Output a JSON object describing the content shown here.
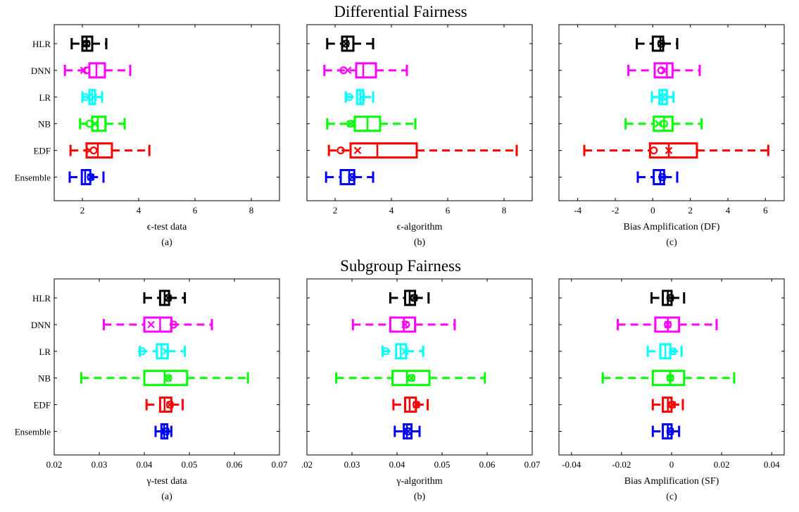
{
  "figure": {
    "section_titles": [
      "Differential Fairness",
      "Subgroup Fairness"
    ]
  },
  "chart_data": [
    {
      "type": "box",
      "section": 0,
      "xlabel": "ϵ-test data",
      "caption": "(a)",
      "xlim": [
        1,
        9
      ],
      "xticks": [
        2,
        4,
        6,
        8
      ],
      "xtick_labels": [
        "2",
        "4",
        "6",
        "8"
      ],
      "categories": [
        "HLR",
        "DNN",
        "LR",
        "NB",
        "EDF",
        "Ensemble"
      ],
      "boxes": [
        {
          "name": "HLR",
          "color": "#000000",
          "min": 1.62,
          "q1": 2.0,
          "median": 2.15,
          "q3": 2.35,
          "max": 2.85,
          "mean": 2.15,
          "mean_marker": "x",
          "extra": 2.15,
          "extra_marker": "o"
        },
        {
          "name": "DNN",
          "color": "#ff00ff",
          "min": 1.38,
          "q1": 2.25,
          "median": 2.5,
          "q3": 2.8,
          "max": 3.7,
          "mean": 2.05,
          "mean_marker": "x",
          "extra": 2.15,
          "extra_marker": "o"
        },
        {
          "name": "LR",
          "color": "#00ffff",
          "min": 2.0,
          "q1": 2.25,
          "median": 2.35,
          "q3": 2.45,
          "max": 2.7,
          "mean": 2.4,
          "mean_marker": "x",
          "extra": 2.1,
          "extra_marker": "o"
        },
        {
          "name": "NB",
          "color": "#00ff00",
          "min": 1.92,
          "q1": 2.35,
          "median": 2.55,
          "q3": 2.82,
          "max": 3.5,
          "mean": 2.45,
          "mean_marker": "x",
          "extra": 2.25,
          "extra_marker": "o"
        },
        {
          "name": "EDF",
          "color": "#ff0000",
          "min": 1.58,
          "q1": 2.15,
          "median": 2.55,
          "q3": 3.05,
          "max": 4.38,
          "mean": 2.25,
          "mean_marker": "x",
          "extra": 2.4,
          "extra_marker": "o"
        },
        {
          "name": "Ensemble",
          "color": "#0000ff",
          "min": 1.55,
          "q1": 1.98,
          "median": 2.1,
          "q3": 2.28,
          "max": 2.75,
          "mean": 2.3,
          "mean_marker": "x",
          "extra": 2.3,
          "extra_marker": "o"
        }
      ]
    },
    {
      "type": "box",
      "section": 0,
      "xlabel": "ϵ-algorithm",
      "caption": "(b)",
      "xlim": [
        1,
        9
      ],
      "xticks": [
        2,
        4,
        6,
        8
      ],
      "xtick_labels": [
        "2",
        "4",
        "6",
        "8"
      ],
      "categories": [
        "HLR",
        "DNN",
        "LR",
        "NB",
        "EDF",
        "Ensemble"
      ],
      "boxes": [
        {
          "name": "HLR",
          "color": "#000000",
          "min": 1.72,
          "q1": 2.25,
          "median": 2.42,
          "q3": 2.65,
          "max": 3.35,
          "mean": 2.38,
          "mean_marker": "x",
          "extra": 2.38,
          "extra_marker": "o"
        },
        {
          "name": "DNN",
          "color": "#ff00ff",
          "min": 1.62,
          "q1": 2.75,
          "median": 3.0,
          "q3": 3.45,
          "max": 4.55,
          "mean": 2.45,
          "mean_marker": "x",
          "extra": 2.3,
          "extra_marker": "o"
        },
        {
          "name": "LR",
          "color": "#00ffff",
          "min": 2.38,
          "q1": 2.78,
          "median": 2.9,
          "q3": 3.0,
          "max": 3.35,
          "mean": 2.95,
          "mean_marker": "x",
          "extra": 2.5,
          "extra_marker": "o"
        },
        {
          "name": "NB",
          "color": "#00ff00",
          "min": 1.72,
          "q1": 2.7,
          "median": 3.15,
          "q3": 3.6,
          "max": 4.85,
          "mean": 2.55,
          "mean_marker": "x",
          "extra": 2.55,
          "extra_marker": "o"
        },
        {
          "name": "EDF",
          "color": "#ff0000",
          "min": 1.78,
          "q1": 2.55,
          "median": 3.5,
          "q3": 4.9,
          "max": 8.45,
          "mean": 2.8,
          "mean_marker": "x",
          "extra": 2.2,
          "extra_marker": "o"
        },
        {
          "name": "Ensemble",
          "color": "#0000ff",
          "min": 1.68,
          "q1": 2.2,
          "median": 2.5,
          "q3": 2.68,
          "max": 3.35,
          "mean": 2.6,
          "mean_marker": "x",
          "extra": 2.6,
          "extra_marker": "o"
        }
      ]
    },
    {
      "type": "box",
      "section": 0,
      "xlabel": "Bias Amplification (DF)",
      "caption": "(c)",
      "xlim": [
        -5,
        7
      ],
      "xticks": [
        -4,
        -2,
        0,
        2,
        4,
        6
      ],
      "xtick_labels": [
        "-4",
        "-2",
        "0",
        "2",
        "4",
        "6"
      ],
      "categories": [
        "HLR",
        "DNN",
        "LR",
        "NB",
        "EDF",
        "Ensemble"
      ],
      "boxes": [
        {
          "name": "HLR",
          "color": "#000000",
          "min": -0.85,
          "q1": 0.0,
          "median": 0.4,
          "q3": 0.55,
          "max": 1.3,
          "mean": 0.45,
          "mean_marker": "x",
          "extra": 0.45,
          "extra_marker": "o"
        },
        {
          "name": "DNN",
          "color": "#ff00ff",
          "min": -1.3,
          "q1": 0.1,
          "median": 0.75,
          "q3": 1.05,
          "max": 2.5,
          "mean": 0.6,
          "mean_marker": "x",
          "extra": 0.45,
          "extra_marker": "o"
        },
        {
          "name": "LR",
          "color": "#00ffff",
          "min": -0.05,
          "q1": 0.35,
          "median": 0.5,
          "q3": 0.75,
          "max": 1.1,
          "mean": 0.55,
          "mean_marker": "x",
          "extra": 0.55,
          "extra_marker": "o"
        },
        {
          "name": "NB",
          "color": "#00ff00",
          "min": -1.45,
          "q1": 0.05,
          "median": 0.6,
          "q3": 1.05,
          "max": 2.6,
          "mean": 0.3,
          "mean_marker": "x",
          "extra": 0.6,
          "extra_marker": "o"
        },
        {
          "name": "EDF",
          "color": "#ff0000",
          "min": -3.65,
          "q1": -0.15,
          "median": 0.85,
          "q3": 2.35,
          "max": 6.15,
          "mean": 0.85,
          "mean_marker": "x",
          "extra": 0.05,
          "extra_marker": "o"
        },
        {
          "name": "Ensemble",
          "color": "#0000ff",
          "min": -0.8,
          "q1": 0.05,
          "median": 0.4,
          "q3": 0.6,
          "max": 1.3,
          "mean": 0.5,
          "mean_marker": "x",
          "extra": 0.5,
          "extra_marker": "o"
        }
      ]
    },
    {
      "type": "box",
      "section": 1,
      "xlabel": "γ-test data",
      "caption": "(a)",
      "xlim": [
        0.02,
        0.07
      ],
      "xticks": [
        0.02,
        0.03,
        0.04,
        0.05,
        0.06,
        0.07
      ],
      "xtick_labels": [
        "0.02",
        "0.03",
        "0.04",
        "0.05",
        "0.06",
        "0.07"
      ],
      "categories": [
        "HLR",
        "DNN",
        "LR",
        "NB",
        "EDF",
        "Ensemble"
      ],
      "boxes": [
        {
          "name": "HLR",
          "color": "#000000",
          "min": 0.04,
          "q1": 0.0435,
          "median": 0.0445,
          "q3": 0.0455,
          "max": 0.049,
          "mean": 0.0453,
          "mean_marker": "x",
          "extra": 0.0453,
          "extra_marker": "o"
        },
        {
          "name": "DNN",
          "color": "#ff00ff",
          "min": 0.031,
          "q1": 0.04,
          "median": 0.0435,
          "q3": 0.046,
          "max": 0.055,
          "mean": 0.0415,
          "mean_marker": "x",
          "extra": 0.0465,
          "extra_marker": "o"
        },
        {
          "name": "LR",
          "color": "#00ffff",
          "min": 0.039,
          "q1": 0.0428,
          "median": 0.0438,
          "q3": 0.0452,
          "max": 0.049,
          "mean": 0.0448,
          "mean_marker": "x",
          "extra": 0.0395,
          "extra_marker": "o"
        },
        {
          "name": "NB",
          "color": "#00ff00",
          "min": 0.026,
          "q1": 0.04,
          "median": 0.0445,
          "q3": 0.0495,
          "max": 0.063,
          "mean": 0.0453,
          "mean_marker": "x",
          "extra": 0.0453,
          "extra_marker": "o"
        },
        {
          "name": "EDF",
          "color": "#ff0000",
          "min": 0.0405,
          "q1": 0.0435,
          "median": 0.0445,
          "q3": 0.046,
          "max": 0.0485,
          "mean": 0.0457,
          "mean_marker": "x",
          "extra": 0.0457,
          "extra_marker": "o"
        },
        {
          "name": "Ensemble",
          "color": "#0000ff",
          "min": 0.0425,
          "q1": 0.0438,
          "median": 0.0444,
          "q3": 0.0451,
          "max": 0.046,
          "mean": 0.0448,
          "mean_marker": "x",
          "extra": 0.0448,
          "extra_marker": "o"
        }
      ]
    },
    {
      "type": "box",
      "section": 1,
      "xlabel": "γ-algorithm",
      "caption": "(b)",
      "xlim": [
        0.02,
        0.07
      ],
      "xticks": [
        0.02,
        0.03,
        0.04,
        0.05,
        0.06,
        0.07
      ],
      "xtick_labels": [
        ".02",
        "0.03",
        "0.04",
        "0.05",
        "0.06",
        "0.07"
      ],
      "categories": [
        "HLR",
        "DNN",
        "LR",
        "NB",
        "EDF",
        "Ensemble"
      ],
      "boxes": [
        {
          "name": "HLR",
          "color": "#000000",
          "min": 0.0385,
          "q1": 0.0418,
          "median": 0.0428,
          "q3": 0.044,
          "max": 0.047,
          "mean": 0.0438,
          "mean_marker": "x",
          "extra": 0.0438,
          "extra_marker": "o"
        },
        {
          "name": "DNN",
          "color": "#ff00ff",
          "min": 0.0302,
          "q1": 0.0385,
          "median": 0.0415,
          "q3": 0.044,
          "max": 0.0528,
          "mean": 0.0418,
          "mean_marker": "x",
          "extra": 0.042,
          "extra_marker": "o"
        },
        {
          "name": "LR",
          "color": "#00ffff",
          "min": 0.0368,
          "q1": 0.0398,
          "median": 0.0408,
          "q3": 0.042,
          "max": 0.0458,
          "mean": 0.0418,
          "mean_marker": "x",
          "extra": 0.0375,
          "extra_marker": "o"
        },
        {
          "name": "NB",
          "color": "#00ff00",
          "min": 0.0265,
          "q1": 0.039,
          "median": 0.0422,
          "q3": 0.0472,
          "max": 0.0595,
          "mean": 0.0432,
          "mean_marker": "x",
          "extra": 0.0432,
          "extra_marker": "o"
        },
        {
          "name": "EDF",
          "color": "#ff0000",
          "min": 0.0392,
          "q1": 0.0418,
          "median": 0.0428,
          "q3": 0.0442,
          "max": 0.0468,
          "mean": 0.0443,
          "mean_marker": "x",
          "extra": 0.0443,
          "extra_marker": "o"
        },
        {
          "name": "Ensemble",
          "color": "#0000ff",
          "min": 0.0395,
          "q1": 0.0415,
          "median": 0.0422,
          "q3": 0.0432,
          "max": 0.045,
          "mean": 0.0425,
          "mean_marker": "x",
          "extra": 0.0425,
          "extra_marker": "o"
        }
      ]
    },
    {
      "type": "box",
      "section": 1,
      "xlabel": "Bias Amplification (SF)",
      "caption": "(c)",
      "xlim": [
        -0.045,
        0.045
      ],
      "xticks": [
        -0.04,
        -0.02,
        0,
        0.02,
        0.04
      ],
      "xtick_labels": [
        "-0.04",
        "-0.02",
        "0",
        "0.02",
        "0.04"
      ],
      "categories": [
        "HLR",
        "DNN",
        "LR",
        "NB",
        "EDF",
        "Ensemble"
      ],
      "boxes": [
        {
          "name": "HLR",
          "color": "#000000",
          "min": -0.008,
          "q1": -0.0035,
          "median": -0.0015,
          "q3": 0.0,
          "max": 0.005,
          "mean": -0.0005,
          "mean_marker": "x",
          "extra": -0.0005,
          "extra_marker": "o"
        },
        {
          "name": "DNN",
          "color": "#ff00ff",
          "min": -0.0215,
          "q1": -0.0065,
          "median": -0.0015,
          "q3": 0.003,
          "max": 0.018,
          "mean": -0.0015,
          "mean_marker": "x",
          "extra": -0.0015,
          "extra_marker": "o"
        },
        {
          "name": "LR",
          "color": "#00ffff",
          "min": -0.0095,
          "q1": -0.0045,
          "median": -0.0025,
          "q3": -0.0005,
          "max": 0.004,
          "mean": 0.0005,
          "mean_marker": "x",
          "extra": 0.0005,
          "extra_marker": "o"
        },
        {
          "name": "NB",
          "color": "#00ff00",
          "min": -0.0275,
          "q1": -0.0075,
          "median": -0.0005,
          "q3": 0.005,
          "max": 0.025,
          "mean": -0.0005,
          "mean_marker": "x",
          "extra": -0.0005,
          "extra_marker": "o"
        },
        {
          "name": "EDF",
          "color": "#ff0000",
          "min": -0.0075,
          "q1": -0.0035,
          "median": -0.0015,
          "q3": 0.0,
          "max": 0.0045,
          "mean": 0.0003,
          "mean_marker": "x",
          "extra": 0.0003,
          "extra_marker": "o"
        },
        {
          "name": "Ensemble",
          "color": "#0000ff",
          "min": -0.0075,
          "q1": -0.0035,
          "median": -0.0015,
          "q3": 0.0,
          "max": 0.003,
          "mean": -0.0005,
          "mean_marker": "x",
          "extra": -0.0005,
          "extra_marker": "o"
        }
      ]
    }
  ]
}
